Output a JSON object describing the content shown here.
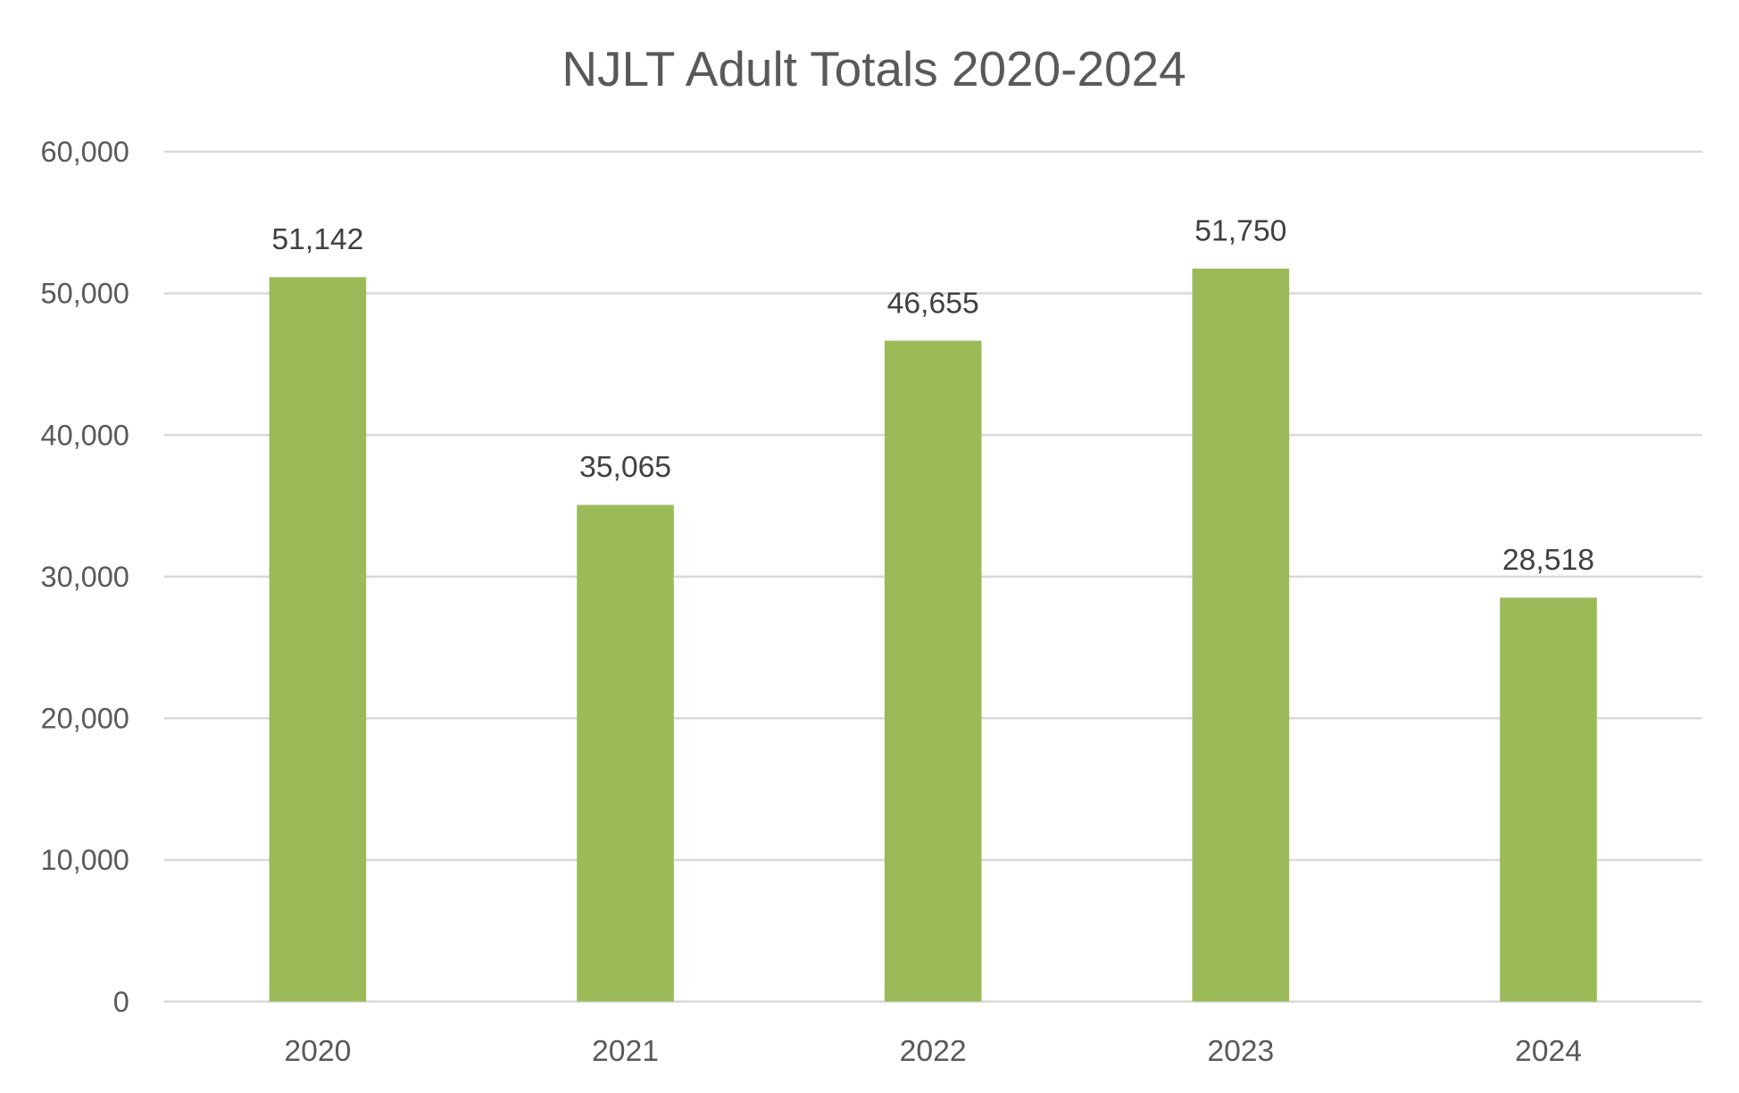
{
  "chart_data": {
    "type": "bar",
    "title": "NJLT Adult Totals 2020-2024",
    "xlabel": "",
    "ylabel": "",
    "categories": [
      "2020",
      "2021",
      "2022",
      "2023",
      "2024"
    ],
    "values": [
      51142,
      35065,
      46655,
      51750,
      28518
    ],
    "data_labels": [
      "51,142",
      "35,065",
      "46,655",
      "51,750",
      "28,518"
    ],
    "ylim": [
      0,
      60000
    ],
    "yticks": [
      0,
      10000,
      20000,
      30000,
      40000,
      50000,
      60000
    ],
    "ytick_labels": [
      "0",
      "10,000",
      "20,000",
      "30,000",
      "40,000",
      "50,000",
      "60,000"
    ],
    "grid": true,
    "legend": "none",
    "colors": {
      "bar": "#9BBB59",
      "grid": "#D9D9D9",
      "axis_text": "#595959",
      "label_text": "#404040"
    }
  }
}
